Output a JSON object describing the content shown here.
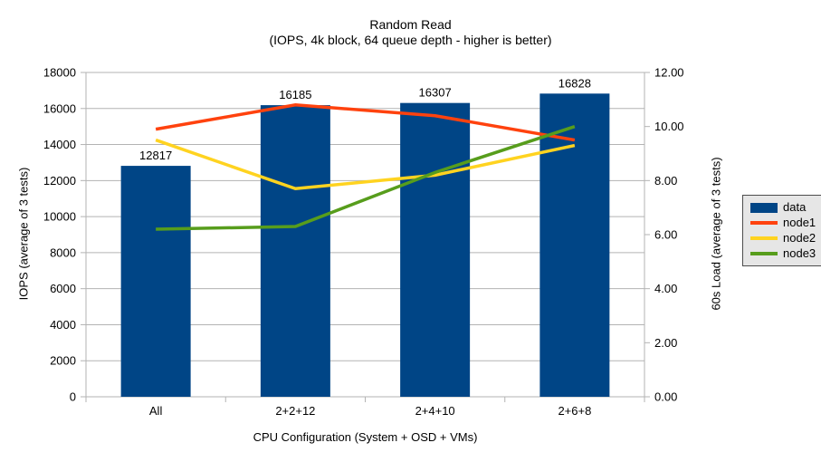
{
  "title": {
    "line1": "Random Read",
    "line2": "(IOPS, 4k block, 64 queue depth - higher is better)"
  },
  "chart_data": {
    "type": "combo-bar-line",
    "categories": [
      "All",
      "2+2+12",
      "2+4+10",
      "2+6+8"
    ],
    "series": [
      {
        "name": "data",
        "type": "bar",
        "axis": "left",
        "color": "#004586",
        "values": [
          12817,
          16185,
          16307,
          16828
        ],
        "value_labels": [
          "12817",
          "16185",
          "16307",
          "16828"
        ]
      },
      {
        "name": "node1",
        "type": "line",
        "axis": "right",
        "color": "#FF420E",
        "values": [
          9.9,
          10.8,
          10.4,
          9.5
        ]
      },
      {
        "name": "node2",
        "type": "line",
        "axis": "right",
        "color": "#FFD320",
        "values": [
          9.5,
          7.7,
          8.2,
          9.3
        ]
      },
      {
        "name": "node3",
        "type": "line",
        "axis": "right",
        "color": "#579D1C",
        "values": [
          6.2,
          6.3,
          8.3,
          10.0
        ]
      }
    ],
    "left_axis": {
      "title": "IOPS (average of 3 tests)",
      "min": 0,
      "max": 18000,
      "step": 2000,
      "tick_values": [
        0,
        2000,
        4000,
        6000,
        8000,
        10000,
        12000,
        14000,
        16000,
        18000
      ],
      "tick_labels": [
        "0",
        "2000",
        "4000",
        "6000",
        "8000",
        "10000",
        "12000",
        "14000",
        "16000",
        "18000"
      ]
    },
    "right_axis": {
      "title": "60s Load (average of 3 tests)",
      "min": 0,
      "max": 12,
      "step": 2,
      "tick_values": [
        0,
        2,
        4,
        6,
        8,
        10,
        12
      ],
      "tick_labels": [
        "0.00",
        "2.00",
        "4.00",
        "6.00",
        "8.00",
        "10.00",
        "12.00"
      ]
    },
    "x_axis": {
      "title": "CPU Configuration (System + OSD + VMs)"
    },
    "legend": {
      "position": "right",
      "entries": [
        "data",
        "node1",
        "node2",
        "node3"
      ]
    },
    "grid": true
  },
  "colors": {
    "background": "#ffffff",
    "grid": "#b3b3b3",
    "axis": "#b3b3b3",
    "text": "#000000",
    "legend_background": "#e6e6e6",
    "legend_border": "#4d4d4d"
  }
}
